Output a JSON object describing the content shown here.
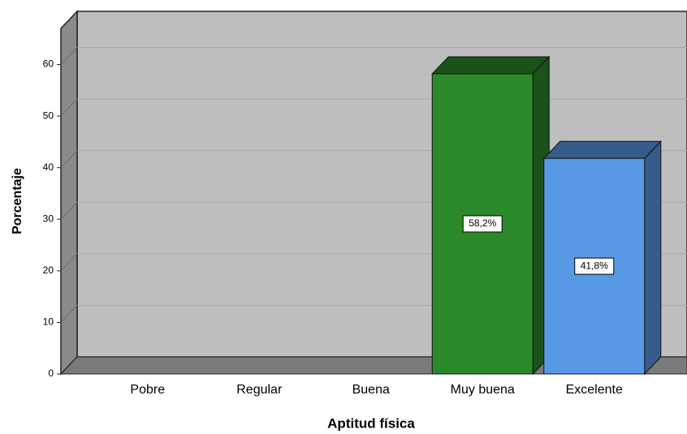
{
  "chart_data": {
    "type": "bar3d",
    "x_label": "Aptitud física",
    "y_label": "Porcentaje",
    "categories": [
      "Pobre",
      "Regular",
      "Buena",
      "Muy buena",
      "Excelente"
    ],
    "values": [
      0,
      0,
      0,
      58.2,
      41.8
    ],
    "value_labels": [
      null,
      null,
      null,
      "58,2%",
      "41,8%"
    ],
    "colors": [
      "#2a8a2a",
      "#2a8a2a",
      "#2a8a2a",
      "#2a8a2a",
      "#5899e6"
    ],
    "ylim": [
      0,
      67
    ],
    "yticks": [
      0,
      10,
      20,
      30,
      40,
      50,
      60
    ],
    "grid": true
  }
}
